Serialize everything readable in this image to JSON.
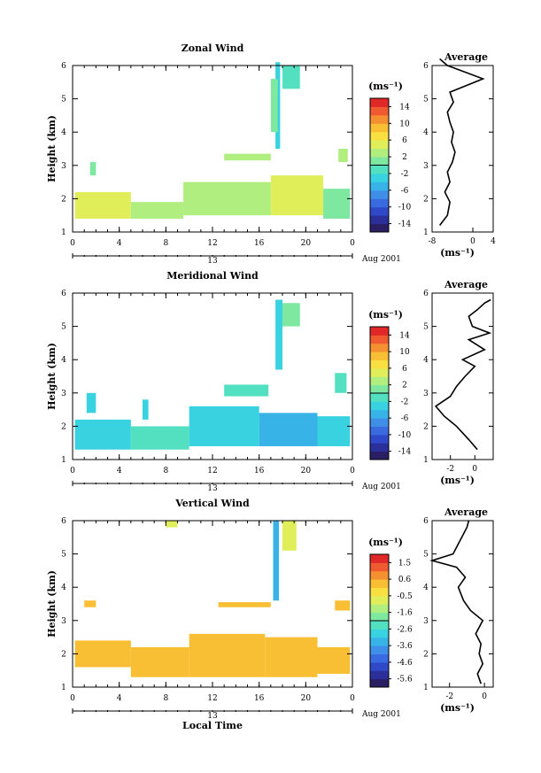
{
  "footer_xlabel": "Local Time",
  "chart_data": [
    {
      "type": "heatmap",
      "title": "Zonal Wind",
      "ylabel": "Height (km)",
      "xticks": [
        "0",
        "4",
        "8",
        "12",
        "16",
        "20",
        "0"
      ],
      "yticks": [
        "1",
        "2",
        "3",
        "4",
        "5",
        "6"
      ],
      "xlim": [
        0,
        24
      ],
      "ylim": [
        1,
        6
      ],
      "date_label": "13",
      "month_label": "Aug 2001",
      "colorbar": {
        "unit": "(ms⁻¹)",
        "ticks": [
          "14",
          "10",
          "6",
          "2",
          "-2",
          "-6",
          "-10",
          "-14"
        ],
        "range": [
          -16,
          16
        ],
        "colors": [
          "#2a1f63",
          "#2a2f9a",
          "#2f49c8",
          "#3a6ae0",
          "#3f8ee8",
          "#38b3e8",
          "#39d2e0",
          "#52e0c0",
          "#7ee8a0",
          "#b0ee80",
          "#e0ee5a",
          "#f8e040",
          "#f8bf35",
          "#f59030",
          "#ef5a30",
          "#e02828"
        ]
      },
      "blocks": [
        {
          "t0": 0.2,
          "t1": 5.0,
          "h0": 1.4,
          "h1": 2.2,
          "v": 4
        },
        {
          "t0": 5.0,
          "t1": 9.5,
          "h0": 1.4,
          "h1": 1.9,
          "v": 2
        },
        {
          "t0": 9.5,
          "t1": 17.0,
          "h0": 1.5,
          "h1": 2.5,
          "v": 2
        },
        {
          "t0": 17.0,
          "t1": 21.5,
          "h0": 1.5,
          "h1": 2.7,
          "v": 4
        },
        {
          "t0": 21.5,
          "t1": 23.8,
          "h0": 1.4,
          "h1": 2.3,
          "v": 1
        },
        {
          "t0": 13.0,
          "t1": 17.0,
          "h0": 3.15,
          "h1": 3.35,
          "v": 2
        },
        {
          "t0": 1.5,
          "t1": 2.0,
          "h0": 2.7,
          "h1": 3.1,
          "v": 0
        },
        {
          "t0": 17.4,
          "t1": 17.8,
          "h0": 3.5,
          "h1": 6.1,
          "v": -4
        },
        {
          "t0": 18.0,
          "t1": 19.5,
          "h0": 5.3,
          "h1": 6.0,
          "v": -2
        },
        {
          "t0": 17.0,
          "t1": 17.6,
          "h0": 4.0,
          "h1": 5.6,
          "v": 1
        },
        {
          "t0": 22.8,
          "t1": 23.6,
          "h0": 3.1,
          "h1": 3.5,
          "v": 2
        }
      ],
      "profile": {
        "xticks": [
          "-8",
          "0",
          "4"
        ],
        "xlim": [
          -8,
          4
        ],
        "yticks": [
          "1",
          "2",
          "3",
          "4",
          "5",
          "6"
        ],
        "ylim": [
          1,
          6
        ],
        "x": [
          -6.5,
          -5,
          -4.5,
          -5.5,
          -4.5,
          -5,
          -4,
          -3.5,
          -4.2,
          -3.8,
          -4.5,
          -5,
          -3.8,
          -4.5,
          2,
          -1.5,
          -5,
          -6.5
        ],
        "y": [
          1.2,
          1.5,
          1.9,
          2.2,
          2.5,
          2.8,
          3.1,
          3.4,
          3.7,
          4.0,
          4.3,
          4.6,
          4.9,
          5.2,
          5.6,
          5.8,
          6.0,
          6.2
        ]
      }
    },
    {
      "type": "heatmap",
      "title": "Meridional Wind",
      "ylabel": "Height (km)",
      "xticks": [
        "0",
        "4",
        "8",
        "12",
        "16",
        "20",
        "0"
      ],
      "yticks": [
        "1",
        "2",
        "3",
        "4",
        "5",
        "6"
      ],
      "xlim": [
        0,
        24
      ],
      "ylim": [
        1,
        6
      ],
      "date_label": "13",
      "month_label": "Aug 2001",
      "colorbar": {
        "unit": "(ms⁻¹)",
        "ticks": [
          "14",
          "10",
          "6",
          "2",
          "-2",
          "-6",
          "-10",
          "-14"
        ],
        "range": [
          -16,
          16
        ],
        "colors": [
          "#2a1f63",
          "#2a2f9a",
          "#2f49c8",
          "#3a6ae0",
          "#3f8ee8",
          "#38b3e8",
          "#39d2e0",
          "#52e0c0",
          "#7ee8a0",
          "#b0ee80",
          "#e0ee5a",
          "#f8e040",
          "#f8bf35",
          "#f59030",
          "#ef5a30",
          "#e02828"
        ]
      },
      "blocks": [
        {
          "t0": 0.2,
          "t1": 5.0,
          "h0": 1.3,
          "h1": 2.2,
          "v": -3
        },
        {
          "t0": 5.0,
          "t1": 10.0,
          "h0": 1.3,
          "h1": 2.0,
          "v": -1
        },
        {
          "t0": 10.0,
          "t1": 16.0,
          "h0": 1.4,
          "h1": 2.6,
          "v": -3
        },
        {
          "t0": 16.0,
          "t1": 21.0,
          "h0": 1.4,
          "h1": 2.4,
          "v": -5
        },
        {
          "t0": 21.0,
          "t1": 23.8,
          "h0": 1.4,
          "h1": 2.3,
          "v": -3
        },
        {
          "t0": 13.0,
          "t1": 16.8,
          "h0": 2.9,
          "h1": 3.25,
          "v": -2
        },
        {
          "t0": 17.4,
          "t1": 18.0,
          "h0": 3.7,
          "h1": 5.8,
          "v": -4
        },
        {
          "t0": 18.0,
          "t1": 19.5,
          "h0": 5.0,
          "h1": 5.7,
          "v": 0
        },
        {
          "t0": 1.2,
          "t1": 2.0,
          "h0": 2.4,
          "h1": 3.0,
          "v": -3
        },
        {
          "t0": 6.0,
          "t1": 6.5,
          "h0": 2.2,
          "h1": 2.8,
          "v": -4
        },
        {
          "t0": 22.5,
          "t1": 23.5,
          "h0": 3.0,
          "h1": 3.6,
          "v": -2
        }
      ],
      "profile": {
        "xticks": [
          "-2",
          "0"
        ],
        "xlim": [
          -3.5,
          1.5
        ],
        "yticks": [
          "1",
          "2",
          "3",
          "4",
          "5",
          "6"
        ],
        "ylim": [
          1,
          6
        ],
        "x": [
          0.2,
          -0.5,
          -1.5,
          -2.5,
          -3.2,
          -2,
          -1.5,
          -0.8,
          0,
          -1,
          0.8,
          -0.5,
          1.2,
          -0.2,
          -0.5,
          0.2,
          0.8,
          1.3
        ],
        "y": [
          1.3,
          1.6,
          2.0,
          2.3,
          2.6,
          2.9,
          3.2,
          3.5,
          3.8,
          4.0,
          4.3,
          4.6,
          4.8,
          5.0,
          5.3,
          5.5,
          5.7,
          5.8
        ]
      }
    },
    {
      "type": "heatmap",
      "title": "Vertical Wind",
      "ylabel": "Height (km)",
      "xticks": [
        "0",
        "4",
        "8",
        "12",
        "16",
        "20",
        "0"
      ],
      "yticks": [
        "1",
        "2",
        "3",
        "4",
        "5",
        "6"
      ],
      "xlim": [
        0,
        24
      ],
      "ylim": [
        1,
        6
      ],
      "date_label": "13",
      "month_label": "Aug 2001",
      "colorbar": {
        "unit": "(ms⁻¹)",
        "ticks": [
          "1.5",
          "0.6",
          "-0.5",
          "-1.6",
          "-2.6",
          "-3.6",
          "-4.6",
          "-5.6"
        ],
        "range": [
          -6.0,
          2.0
        ],
        "colors": [
          "#2a1f63",
          "#2a2f9a",
          "#2f49c8",
          "#3a6ae0",
          "#3f8ee8",
          "#38b3e8",
          "#39d2e0",
          "#52e0c0",
          "#7ee8a0",
          "#b0ee80",
          "#e0ee5a",
          "#f8e040",
          "#f8bf35",
          "#f59030",
          "#ef5a30",
          "#e02828"
        ]
      },
      "blocks": [
        {
          "t0": 0.2,
          "t1": 5.0,
          "h0": 1.6,
          "h1": 2.4,
          "v": 0.35
        },
        {
          "t0": 5.0,
          "t1": 10.0,
          "h0": 1.3,
          "h1": 2.2,
          "v": 0.25
        },
        {
          "t0": 10.0,
          "t1": 16.5,
          "h0": 1.3,
          "h1": 2.6,
          "v": 0.4
        },
        {
          "t0": 16.5,
          "t1": 21.0,
          "h0": 1.3,
          "h1": 2.5,
          "v": 0.3
        },
        {
          "t0": 21.0,
          "t1": 23.8,
          "h0": 1.4,
          "h1": 2.2,
          "v": 0.4
        },
        {
          "t0": 12.5,
          "t1": 17.0,
          "h0": 3.4,
          "h1": 3.55,
          "v": 0.25
        },
        {
          "t0": 22.5,
          "t1": 23.8,
          "h0": 3.3,
          "h1": 3.6,
          "v": 0.3
        },
        {
          "t0": 17.2,
          "t1": 17.7,
          "h0": 3.6,
          "h1": 6.0,
          "v": -3.3
        },
        {
          "t0": 18.0,
          "t1": 19.2,
          "h0": 5.1,
          "h1": 6.0,
          "v": -1.0
        },
        {
          "t0": 8.0,
          "t1": 9.0,
          "h0": 5.8,
          "h1": 6.0,
          "v": -1.0
        },
        {
          "t0": 1.0,
          "t1": 2.0,
          "h0": 3.4,
          "h1": 3.6,
          "v": 0.2
        }
      ],
      "profile": {
        "xticks": [
          "-2",
          "0"
        ],
        "xlim": [
          -3,
          0.5
        ],
        "yticks": [
          "1",
          "2",
          "3",
          "4",
          "5",
          "6"
        ],
        "ylim": [
          1,
          6
        ],
        "x": [
          -0.2,
          -0.4,
          -0.1,
          -0.3,
          -0.2,
          -0.5,
          -0.1,
          -0.8,
          -1.2,
          -1.5,
          -1.1,
          -1.6,
          -3.0,
          -1.8,
          -1.5,
          -1.2,
          -1.0,
          -0.9
        ],
        "y": [
          1.1,
          1.4,
          1.7,
          2.0,
          2.3,
          2.6,
          3.0,
          3.3,
          3.6,
          4.0,
          4.3,
          4.6,
          4.8,
          5.0,
          5.3,
          5.6,
          5.8,
          6.0
        ]
      }
    }
  ]
}
